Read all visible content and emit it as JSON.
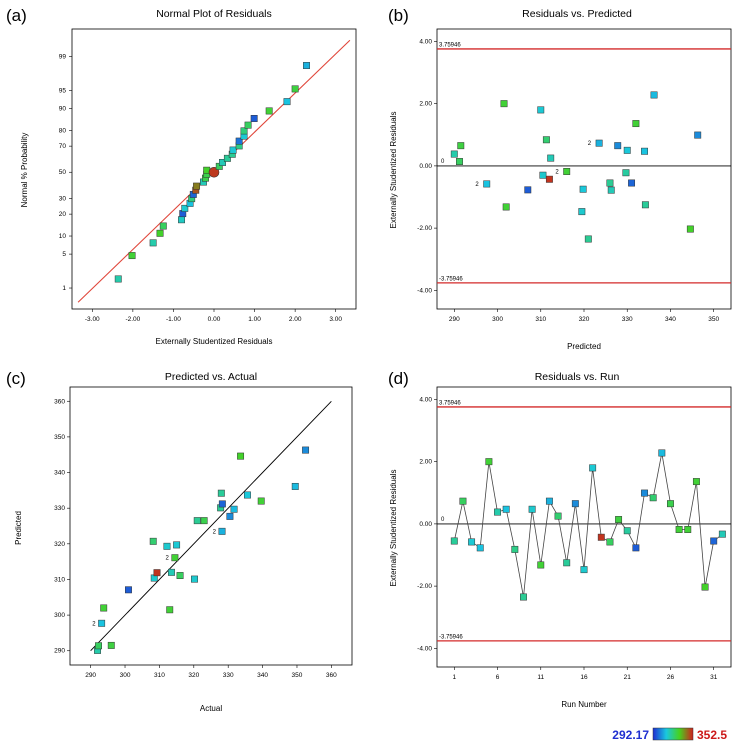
{
  "colorbar": {
    "min_label": "292.17",
    "max_label": "352.5"
  },
  "chart_data": [
    {
      "panel": "(a)",
      "type": "scatter",
      "title": "Normal Plot of Residuals",
      "xlabel": "Externally Studentized Residuals",
      "ylabel": "Normal % Probability",
      "xlim": [
        -3.5,
        3.5
      ],
      "x_ticks": [
        "-3.00",
        "-2.00",
        "-1.00",
        "0.00",
        "1.00",
        "2.00",
        "3.00"
      ],
      "y_ticks": [
        "1",
        "5",
        "10",
        "20",
        "30",
        "50",
        "70",
        "80",
        "90",
        "95",
        "99"
      ],
      "ylim": [
        0.3,
        99.8
      ],
      "fit_line": [
        [
          -3.35,
          0.45
        ],
        [
          3.35,
          99.6
        ]
      ],
      "points": [
        {
          "x": -2.36,
          "y": 1.6,
          "c": 0.42
        },
        {
          "x": -2.02,
          "y": 4.7,
          "c": 0.62
        },
        {
          "x": -1.5,
          "y": 7.8,
          "c": 0.42
        },
        {
          "x": -1.33,
          "y": 11.0,
          "c": 0.64
        },
        {
          "x": -1.25,
          "y": 14.0,
          "c": 0.55
        },
        {
          "x": -0.8,
          "y": 17.0,
          "c": 0.38
        },
        {
          "x": -0.77,
          "y": 20.3,
          "c": 0.1
        },
        {
          "x": -0.72,
          "y": 23.4,
          "c": 0.36
        },
        {
          "x": -0.59,
          "y": 26.6,
          "c": 0.32
        },
        {
          "x": -0.55,
          "y": 29.8,
          "c": 0.5
        },
        {
          "x": -0.51,
          "y": 32.8,
          "c": 0.12
        },
        {
          "x": -0.45,
          "y": 35.9,
          "c": 0.9
        },
        {
          "x": -0.43,
          "y": 39.0,
          "c": 0.82
        },
        {
          "x": -0.26,
          "y": 42.2,
          "c": 0.4
        },
        {
          "x": -0.21,
          "y": 45.3,
          "c": 0.58
        },
        {
          "x": -0.18,
          "y": 48.4,
          "c": 0.58
        },
        {
          "x": -0.18,
          "y": 51.6,
          "c": 0.64
        },
        {
          "x": 0.0,
          "y": 50.0,
          "c": 0.95,
          "big": true
        },
        {
          "x": 0.13,
          "y": 54.7,
          "c": 0.55
        },
        {
          "x": 0.21,
          "y": 57.8,
          "c": 0.4
        },
        {
          "x": 0.33,
          "y": 61.0,
          "c": 0.45
        },
        {
          "x": 0.45,
          "y": 64.1,
          "c": 0.46
        },
        {
          "x": 0.47,
          "y": 67.2,
          "c": 0.35
        },
        {
          "x": 0.62,
          "y": 70.2,
          "c": 0.48
        },
        {
          "x": 0.62,
          "y": 73.4,
          "c": 0.15
        },
        {
          "x": 0.74,
          "y": 76.6,
          "c": 0.35
        },
        {
          "x": 0.74,
          "y": 79.7,
          "c": 0.5
        },
        {
          "x": 0.84,
          "y": 82.8,
          "c": 0.55
        },
        {
          "x": 0.99,
          "y": 86.0,
          "c": 0.1
        },
        {
          "x": 1.36,
          "y": 89.1,
          "c": 0.62
        },
        {
          "x": 1.8,
          "y": 92.2,
          "c": 0.32
        },
        {
          "x": 2.0,
          "y": 95.3,
          "c": 0.6
        },
        {
          "x": 2.28,
          "y": 98.4,
          "c": 0.28
        }
      ]
    },
    {
      "panel": "(b)",
      "type": "scatter",
      "title": "Residuals vs. Predicted",
      "xlabel": "Predicted",
      "ylabel": "Externally Studentized Residuals",
      "xlim": [
        286,
        354
      ],
      "ylim": [
        -4.6,
        4.4
      ],
      "x_ticks": [
        "290",
        "300",
        "310",
        "320",
        "330",
        "340",
        "350"
      ],
      "y_ticks": [
        "-4.00",
        "-2.00",
        "0.00",
        "2.00",
        "4.00"
      ],
      "limit_lines": [
        3.75946,
        -3.75946
      ],
      "limit_labels": [
        "3.75946",
        "-3.75946"
      ],
      "zero_label": "0",
      "points": [
        {
          "x": 290.0,
          "y": 0.38,
          "c": 0.42
        },
        {
          "x": 291.2,
          "y": 0.14,
          "c": 0.55
        },
        {
          "x": 291.5,
          "y": 0.65,
          "c": 0.6
        },
        {
          "x": 297.5,
          "y": -0.58,
          "c": 0.32,
          "label": "2"
        },
        {
          "x": 301.5,
          "y": 2.0,
          "c": 0.62
        },
        {
          "x": 302.0,
          "y": -1.32,
          "c": 0.62
        },
        {
          "x": 307.0,
          "y": -0.77,
          "c": 0.1
        },
        {
          "x": 310.0,
          "y": 1.8,
          "c": 0.35
        },
        {
          "x": 310.5,
          "y": -0.3,
          "c": 0.36
        },
        {
          "x": 311.3,
          "y": 0.84,
          "c": 0.52
        },
        {
          "x": 312.0,
          "y": -0.43,
          "c": 0.96
        },
        {
          "x": 312.3,
          "y": 0.25,
          "c": 0.4
        },
        {
          "x": 316.0,
          "y": -0.18,
          "c": 0.62,
          "label": "2"
        },
        {
          "x": 319.5,
          "y": -1.47,
          "c": 0.36
        },
        {
          "x": 319.8,
          "y": -0.75,
          "c": 0.34
        },
        {
          "x": 321.0,
          "y": -2.35,
          "c": 0.46
        },
        {
          "x": 323.5,
          "y": 0.73,
          "c": 0.28,
          "label": "2"
        },
        {
          "x": 326.0,
          "y": -0.55,
          "c": 0.46
        },
        {
          "x": 326.3,
          "y": -0.78,
          "c": 0.4
        },
        {
          "x": 327.8,
          "y": 0.65,
          "c": 0.2
        },
        {
          "x": 329.7,
          "y": -0.22,
          "c": 0.44
        },
        {
          "x": 330.0,
          "y": 0.5,
          "c": 0.34
        },
        {
          "x": 331.0,
          "y": -0.55,
          "c": 0.12
        },
        {
          "x": 332.0,
          "y": 1.36,
          "c": 0.62
        },
        {
          "x": 334.0,
          "y": 0.47,
          "c": 0.32
        },
        {
          "x": 334.2,
          "y": -1.25,
          "c": 0.45
        },
        {
          "x": 336.2,
          "y": 2.28,
          "c": 0.3
        },
        {
          "x": 344.6,
          "y": -2.03,
          "c": 0.64
        },
        {
          "x": 346.3,
          "y": 0.99,
          "c": 0.2
        }
      ]
    },
    {
      "panel": "(c)",
      "type": "scatter",
      "title": "Predicted vs. Actual",
      "xlabel": "Actual",
      "ylabel": "Predicted",
      "xlim": [
        284,
        366
      ],
      "ylim": [
        286,
        364
      ],
      "x_ticks": [
        "290",
        "300",
        "310",
        "320",
        "330",
        "340",
        "350",
        "360"
      ],
      "y_ticks": [
        "290",
        "300",
        "310",
        "320",
        "330",
        "340",
        "350",
        "360"
      ],
      "fit_line": [
        [
          290,
          290
        ],
        [
          360,
          360
        ]
      ],
      "points": [
        {
          "x": 292.0,
          "y": 290.1,
          "c": 0.42
        },
        {
          "x": 292.3,
          "y": 291.4,
          "c": 0.55
        },
        {
          "x": 293.2,
          "y": 297.7,
          "c": 0.32,
          "label": "2"
        },
        {
          "x": 293.8,
          "y": 302.0,
          "c": 0.62
        },
        {
          "x": 296.0,
          "y": 291.5,
          "c": 0.6
        },
        {
          "x": 301.0,
          "y": 307.1,
          "c": 0.1
        },
        {
          "x": 308.2,
          "y": 320.7,
          "c": 0.52
        },
        {
          "x": 308.5,
          "y": 310.4,
          "c": 0.36
        },
        {
          "x": 309.3,
          "y": 311.9,
          "c": 0.96
        },
        {
          "x": 312.2,
          "y": 319.3,
          "c": 0.36
        },
        {
          "x": 313.0,
          "y": 301.5,
          "c": 0.62
        },
        {
          "x": 313.5,
          "y": 312.0,
          "c": 0.4
        },
        {
          "x": 314.5,
          "y": 316.1,
          "c": 0.62,
          "label": "2"
        },
        {
          "x": 315.0,
          "y": 319.7,
          "c": 0.35
        },
        {
          "x": 316.0,
          "y": 311.1,
          "c": 0.55
        },
        {
          "x": 320.2,
          "y": 310.1,
          "c": 0.36
        },
        {
          "x": 321.0,
          "y": 326.5,
          "c": 0.46
        },
        {
          "x": 323.0,
          "y": 326.5,
          "c": 0.58
        },
        {
          "x": 327.8,
          "y": 330.1,
          "c": 0.46
        },
        {
          "x": 328.0,
          "y": 334.2,
          "c": 0.45
        },
        {
          "x": 328.2,
          "y": 323.5,
          "c": 0.28,
          "label": "2"
        },
        {
          "x": 328.3,
          "y": 331.2,
          "c": 0.12
        },
        {
          "x": 330.5,
          "y": 327.7,
          "c": 0.2
        },
        {
          "x": 331.7,
          "y": 329.7,
          "c": 0.3
        },
        {
          "x": 333.6,
          "y": 344.6,
          "c": 0.64
        },
        {
          "x": 335.6,
          "y": 333.7,
          "c": 0.34
        },
        {
          "x": 339.6,
          "y": 332.0,
          "c": 0.62
        },
        {
          "x": 349.5,
          "y": 336.1,
          "c": 0.3
        },
        {
          "x": 352.5,
          "y": 346.3,
          "c": 0.2
        }
      ]
    },
    {
      "panel": "(d)",
      "type": "line",
      "title": "Residuals vs. Run",
      "xlabel": "Run Number",
      "ylabel": "Externally Studentized Residuals",
      "xlim": [
        -1,
        33
      ],
      "ylim": [
        -4.6,
        4.4
      ],
      "x_ticks": [
        "1",
        "6",
        "11",
        "16",
        "21",
        "26",
        "31"
      ],
      "y_ticks": [
        "-4.00",
        "-2.00",
        "0.00",
        "2.00",
        "4.00"
      ],
      "limit_lines": [
        3.75946,
        -3.75946
      ],
      "limit_labels": [
        "3.75946",
        "-3.75946"
      ],
      "zero_label": "0",
      "points": [
        {
          "x": 1,
          "y": -0.55,
          "c": 0.45
        },
        {
          "x": 2,
          "y": 0.73,
          "c": 0.55
        },
        {
          "x": 3,
          "y": -0.58,
          "c": 0.35
        },
        {
          "x": 4,
          "y": -0.77,
          "c": 0.32
        },
        {
          "x": 5,
          "y": 2.0,
          "c": 0.62
        },
        {
          "x": 6,
          "y": 0.38,
          "c": 0.42
        },
        {
          "x": 7,
          "y": 0.47,
          "c": 0.32
        },
        {
          "x": 8,
          "y": -0.82,
          "c": 0.48
        },
        {
          "x": 9,
          "y": -2.35,
          "c": 0.46
        },
        {
          "x": 10,
          "y": 0.47,
          "c": 0.36
        },
        {
          "x": 11,
          "y": -1.32,
          "c": 0.62
        },
        {
          "x": 12,
          "y": 0.73,
          "c": 0.28
        },
        {
          "x": 13,
          "y": 0.25,
          "c": 0.52
        },
        {
          "x": 14,
          "y": -1.25,
          "c": 0.45
        },
        {
          "x": 15,
          "y": 0.65,
          "c": 0.2
        },
        {
          "x": 16,
          "y": -1.47,
          "c": 0.36
        },
        {
          "x": 17,
          "y": 1.8,
          "c": 0.35
        },
        {
          "x": 18,
          "y": -0.43,
          "c": 0.96
        },
        {
          "x": 19,
          "y": -0.58,
          "c": 0.55
        },
        {
          "x": 20,
          "y": 0.14,
          "c": 0.6
        },
        {
          "x": 21,
          "y": -0.22,
          "c": 0.44
        },
        {
          "x": 22,
          "y": -0.77,
          "c": 0.1
        },
        {
          "x": 23,
          "y": 0.99,
          "c": 0.2
        },
        {
          "x": 24,
          "y": 0.84,
          "c": 0.52
        },
        {
          "x": 25,
          "y": 2.28,
          "c": 0.3
        },
        {
          "x": 26,
          "y": 0.65,
          "c": 0.58
        },
        {
          "x": 27,
          "y": -0.18,
          "c": 0.62
        },
        {
          "x": 28,
          "y": -0.18,
          "c": 0.62
        },
        {
          "x": 29,
          "y": 1.36,
          "c": 0.62
        },
        {
          "x": 30,
          "y": -2.03,
          "c": 0.64
        },
        {
          "x": 31,
          "y": -0.55,
          "c": 0.12
        },
        {
          "x": 32,
          "y": -0.33,
          "c": 0.4
        }
      ]
    }
  ]
}
